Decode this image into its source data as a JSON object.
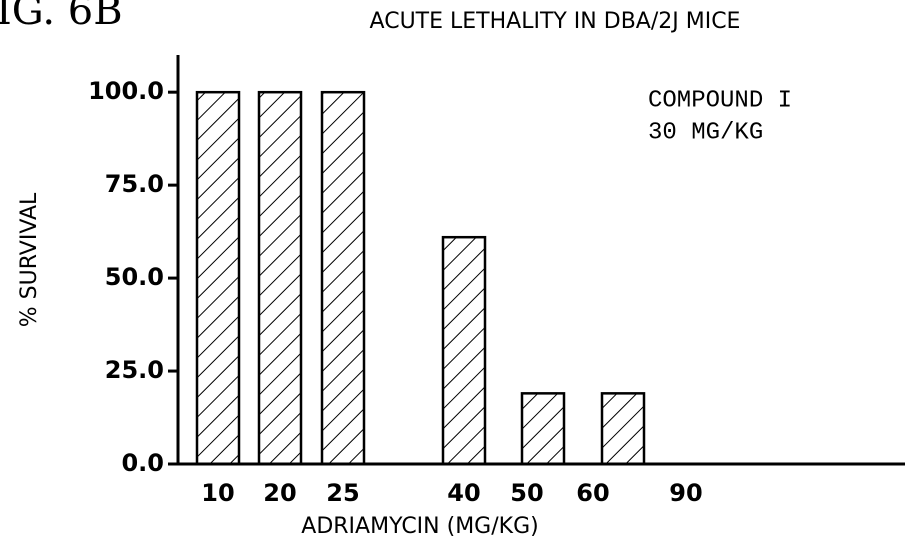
{
  "chart_data": {
    "type": "bar",
    "corner_label": "IG. 6B",
    "title": "ACUTE LETHALITY IN DBA/2J MICE",
    "annotation": [
      "COMPOUND I",
      "30 MG/KG"
    ],
    "x_label": "ADRIAMYCIN (MG/KG)",
    "y_label": "% SURVIVAL",
    "categories": [
      "10",
      "20",
      "25",
      "40",
      "50",
      "60",
      "90"
    ],
    "values": [
      100,
      100,
      100,
      61,
      19,
      19,
      0
    ],
    "color": "#000000",
    "ylim": [
      0,
      110
    ],
    "yticks": [
      {
        "value": 0,
        "label": "0.0"
      },
      {
        "value": 25,
        "label": "25.0"
      },
      {
        "value": 50,
        "label": "50.0"
      },
      {
        "value": 75,
        "label": "75.0"
      },
      {
        "value": 100,
        "label": "100.0"
      }
    ],
    "grid": false
  }
}
